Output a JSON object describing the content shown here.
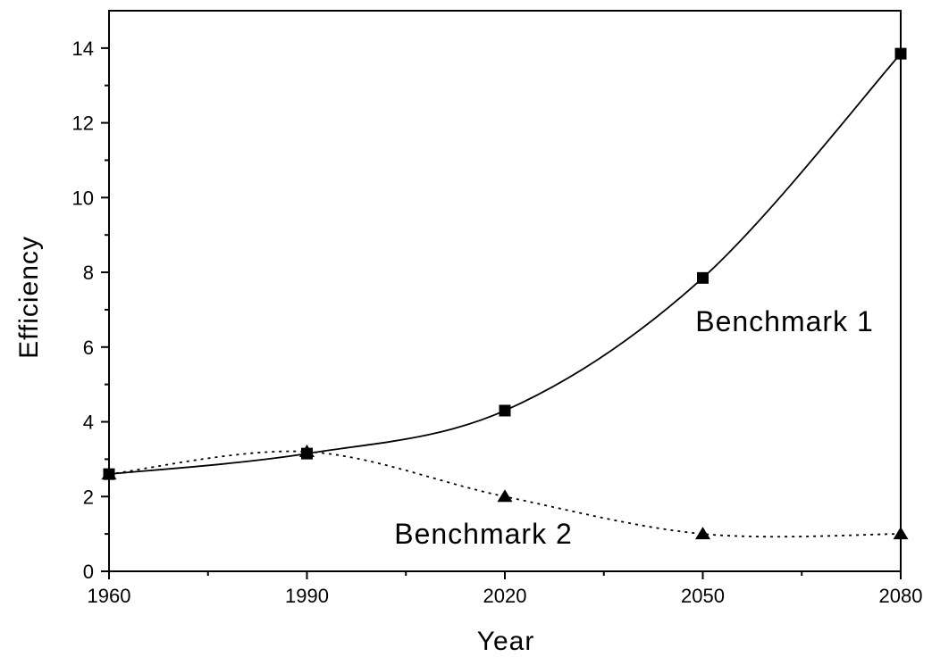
{
  "chart_data": {
    "type": "line",
    "title": "",
    "xlabel": "Year",
    "ylabel": "Efficiency",
    "xlim": [
      1960,
      2080
    ],
    "ylim": [
      0,
      15
    ],
    "xticks": [
      1960,
      1990,
      2020,
      2050,
      2080
    ],
    "yticks": [
      0,
      2,
      4,
      6,
      8,
      10,
      12,
      14
    ],
    "x": [
      1960,
      1990,
      2020,
      2050,
      2080
    ],
    "series": [
      {
        "name": "Benchmark 1",
        "values": [
          2.6,
          3.15,
          4.3,
          7.85,
          13.85
        ],
        "marker": "square",
        "line_style": "solid",
        "color": "#000000"
      },
      {
        "name": "Benchmark 2",
        "values": [
          2.6,
          3.2,
          2.0,
          1.0,
          1.0
        ],
        "marker": "triangle",
        "line_style": "dotted",
        "color": "#000000"
      }
    ],
    "annotations": [
      {
        "text": "Benchmark 1",
        "series": 0
      },
      {
        "text": "Benchmark 2",
        "series": 1
      }
    ],
    "grid": false,
    "legend": "none"
  }
}
